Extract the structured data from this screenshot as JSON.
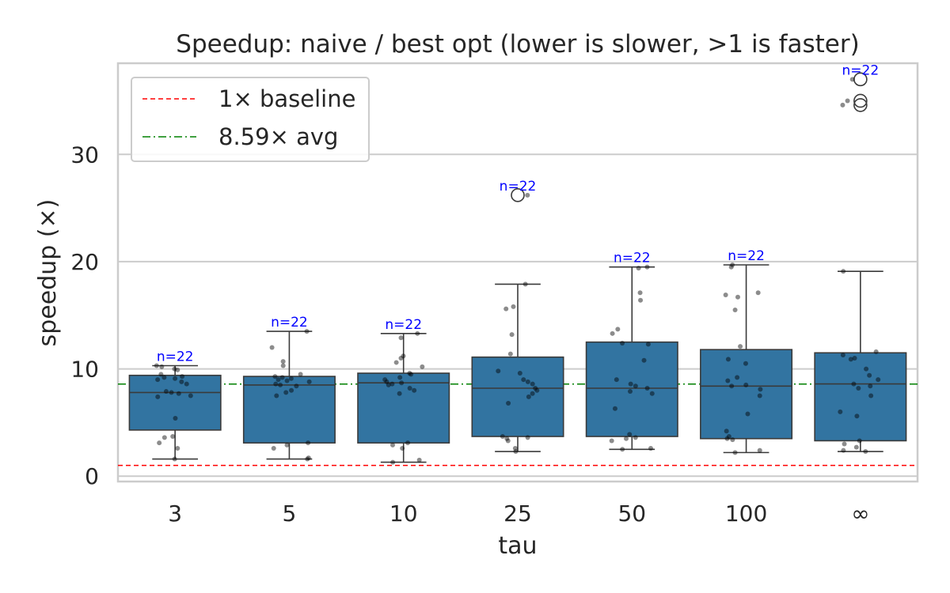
{
  "chart_data": {
    "type": "box",
    "title": "Speedup: naive / best opt (lower is slower, >1 is faster)",
    "xlabel": "tau",
    "ylabel": "speedup (×)",
    "categories": [
      "3",
      "5",
      "10",
      "25",
      "50",
      "100",
      "∞"
    ],
    "ylim": [
      -0.5,
      38.5
    ],
    "yticks": [
      0,
      10,
      20,
      30
    ],
    "grid": true,
    "box_color": "#3274a1",
    "boxes": [
      {
        "whislo": 1.6,
        "q1": 4.3,
        "med": 7.8,
        "q3": 9.4,
        "whishi": 10.3,
        "fliers": [],
        "n_label": "n=22"
      },
      {
        "whislo": 1.6,
        "q1": 3.1,
        "med": 8.5,
        "q3": 9.3,
        "whishi": 13.5,
        "fliers": [],
        "n_label": "n=22"
      },
      {
        "whislo": 1.3,
        "q1": 3.1,
        "med": 8.7,
        "q3": 9.6,
        "whishi": 13.3,
        "fliers": [],
        "n_label": "n=22"
      },
      {
        "whislo": 2.3,
        "q1": 3.7,
        "med": 8.2,
        "q3": 11.1,
        "whishi": 17.9,
        "fliers": [
          26.2
        ],
        "n_label": "n=22"
      },
      {
        "whislo": 2.5,
        "q1": 3.7,
        "med": 8.2,
        "q3": 12.5,
        "whishi": 19.5,
        "fliers": [],
        "n_label": "n=22"
      },
      {
        "whislo": 2.2,
        "q1": 3.5,
        "med": 8.4,
        "q3": 11.8,
        "whishi": 19.7,
        "fliers": [],
        "n_label": "n=22"
      },
      {
        "whislo": 2.3,
        "q1": 3.3,
        "med": 8.6,
        "q3": 11.5,
        "whishi": 19.1,
        "fliers": [
          34.6,
          35.0,
          37.0
        ],
        "n_label": "n=22"
      }
    ],
    "points": [
      [
        1.6,
        2.6,
        3.1,
        3.6,
        3.7,
        5.4,
        7.4,
        7.5,
        7.7,
        7.8,
        7.9,
        8.6,
        8.8,
        9.0,
        9.1,
        9.2,
        9.3,
        9.5,
        9.9,
        10.0,
        10.2,
        10.3
      ],
      [
        1.6,
        1.7,
        2.6,
        2.9,
        3.1,
        7.5,
        7.8,
        8.0,
        8.4,
        8.5,
        8.6,
        8.8,
        8.9,
        9.0,
        9.1,
        9.2,
        9.3,
        9.5,
        10.3,
        10.7,
        12.0,
        13.5
      ],
      [
        1.3,
        1.5,
        2.6,
        2.9,
        3.1,
        7.7,
        8.0,
        8.2,
        8.5,
        8.6,
        8.7,
        8.8,
        9.0,
        9.2,
        9.5,
        9.6,
        10.2,
        10.6,
        11.0,
        11.2,
        12.9,
        13.3
      ],
      [
        2.3,
        2.6,
        3.3,
        3.5,
        3.6,
        3.7,
        6.8,
        7.4,
        7.7,
        8.0,
        8.2,
        8.6,
        8.8,
        9.0,
        9.6,
        9.8,
        11.4,
        13.2,
        15.6,
        15.8,
        17.9,
        26.2
      ],
      [
        2.5,
        2.6,
        3.3,
        3.5,
        3.6,
        3.9,
        6.3,
        7.7,
        7.9,
        8.2,
        8.4,
        8.6,
        9.0,
        10.8,
        12.3,
        12.4,
        13.3,
        13.7,
        16.4,
        17.1,
        19.4,
        19.5
      ],
      [
        2.2,
        2.4,
        3.4,
        3.5,
        3.7,
        4.2,
        5.8,
        7.5,
        8.1,
        8.4,
        8.5,
        8.9,
        9.2,
        10.5,
        10.9,
        12.1,
        15.5,
        16.7,
        17.1,
        19.5,
        19.7,
        16.9
      ],
      [
        2.3,
        2.4,
        2.7,
        3.0,
        3.3,
        5.6,
        6.0,
        7.5,
        8.2,
        8.4,
        8.6,
        9.0,
        9.4,
        10.0,
        10.9,
        11.0,
        11.3,
        11.6,
        19.1,
        34.6,
        35.0,
        37.0
      ]
    ],
    "reference_lines": [
      {
        "name": "1× baseline",
        "value": 1.0,
        "color": "#ff0000",
        "style": "dashed"
      },
      {
        "name": "8.59× avg",
        "value": 8.59,
        "color": "#008000",
        "style": "dashdot"
      }
    ],
    "legend": "top-left"
  }
}
